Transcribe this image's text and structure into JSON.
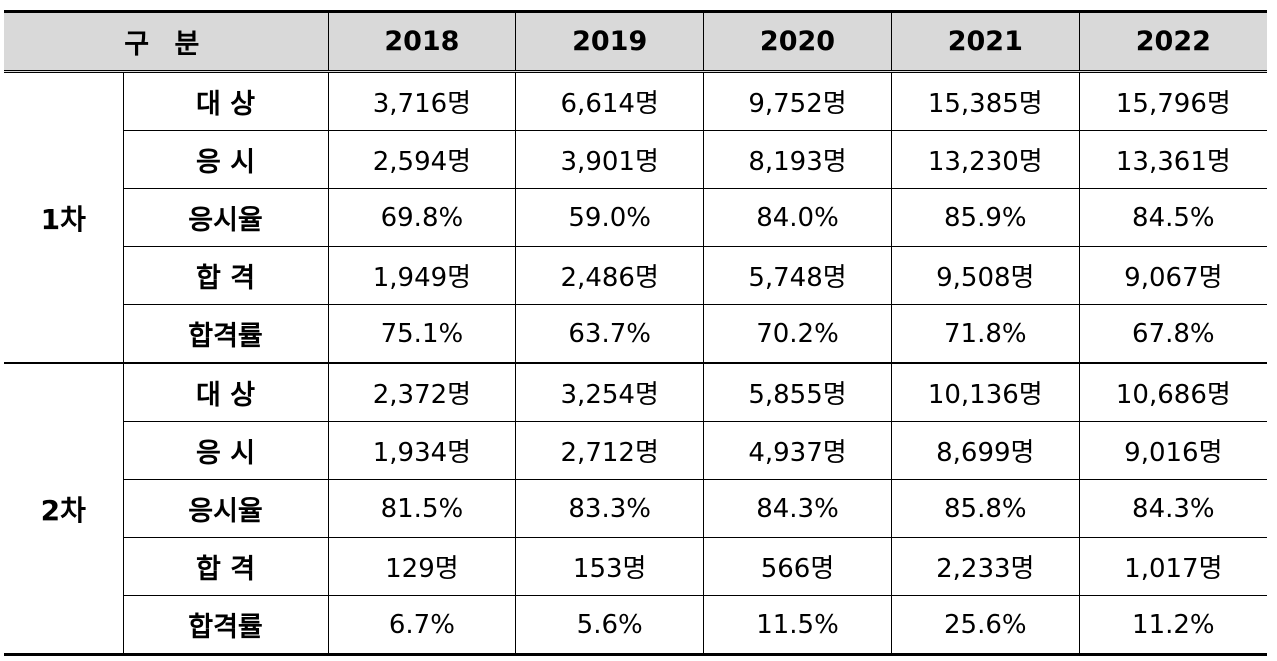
{
  "header": {
    "label": "구 분",
    "years": [
      "2018",
      "2019",
      "2020",
      "2021",
      "2022"
    ]
  },
  "groups": [
    {
      "name": "1차",
      "rows": [
        {
          "label": "대 상",
          "values": [
            "3,716명",
            "6,614명",
            "9,752명",
            "15,385명",
            "15,796명"
          ]
        },
        {
          "label": "응 시",
          "values": [
            "2,594명",
            "3,901명",
            "8,193명",
            "13,230명",
            "13,361명"
          ]
        },
        {
          "label": "응시율",
          "values": [
            "69.8%",
            "59.0%",
            "84.0%",
            "85.9%",
            "84.5%"
          ]
        },
        {
          "label": "합 격",
          "values": [
            "1,949명",
            "2,486명",
            "5,748명",
            "9,508명",
            "9,067명"
          ]
        },
        {
          "label": "합격률",
          "values": [
            "75.1%",
            "63.7%",
            "70.2%",
            "71.8%",
            "67.8%"
          ]
        }
      ]
    },
    {
      "name": "2차",
      "rows": [
        {
          "label": "대 상",
          "values": [
            "2,372명",
            "3,254명",
            "5,855명",
            "10,136명",
            "10,686명"
          ]
        },
        {
          "label": "응 시",
          "values": [
            "1,934명",
            "2,712명",
            "4,937명",
            "8,699명",
            "9,016명"
          ]
        },
        {
          "label": "응시율",
          "values": [
            "81.5%",
            "83.3%",
            "84.3%",
            "85.8%",
            "84.3%"
          ]
        },
        {
          "label": "합 격",
          "values": [
            "129명",
            "153명",
            "566명",
            "2,233명",
            "1,017명"
          ]
        },
        {
          "label": "합격률",
          "values": [
            "6.7%",
            "5.6%",
            "11.5%",
            "25.6%",
            "11.2%"
          ]
        }
      ]
    }
  ]
}
